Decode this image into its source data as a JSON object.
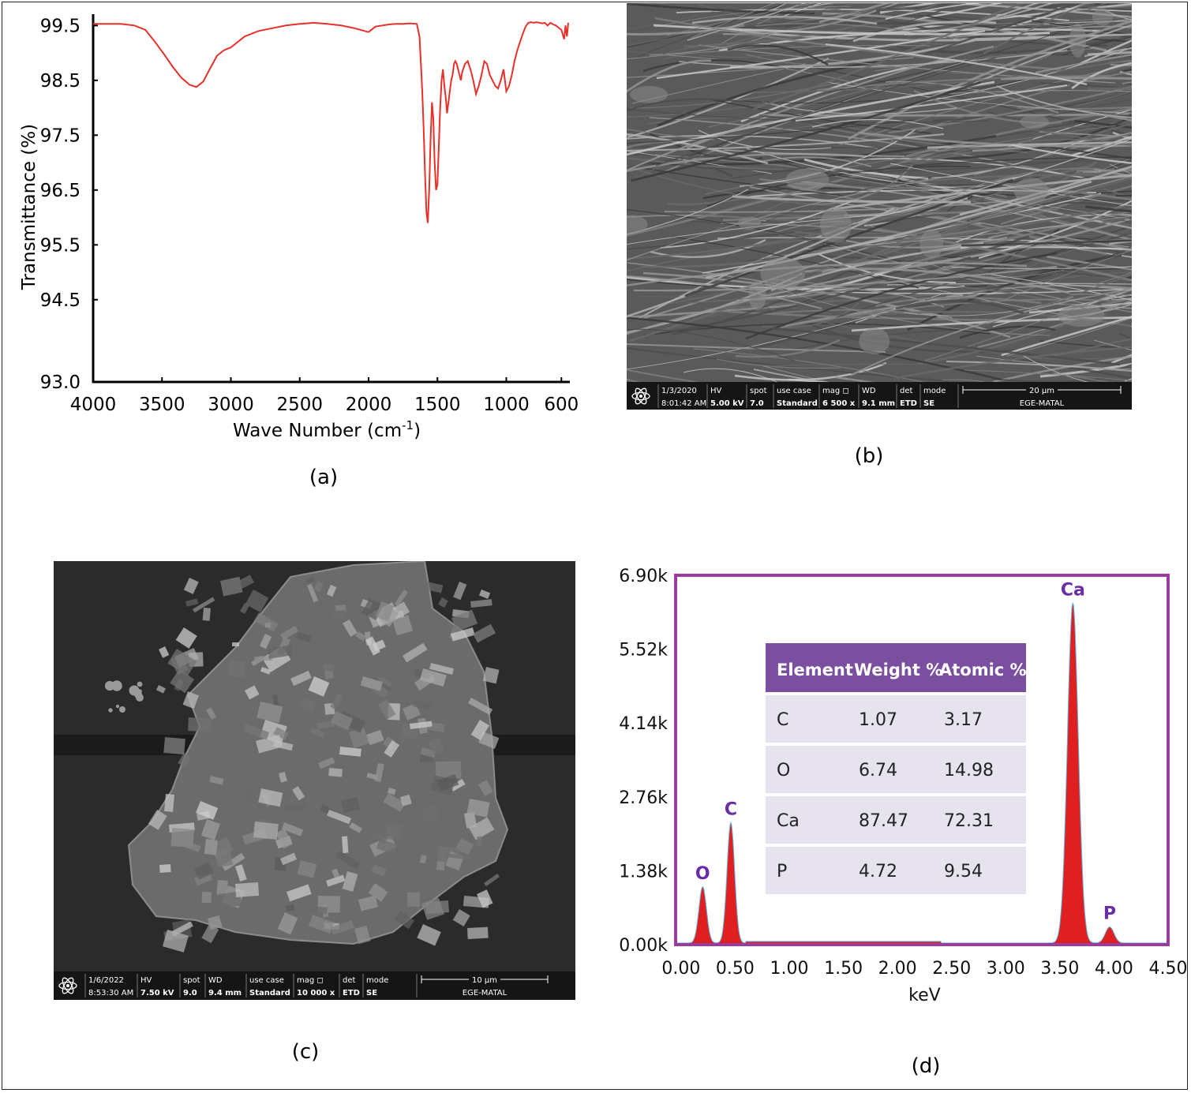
{
  "figure": {
    "panel_labels": [
      "(a)",
      "(b)",
      "(c)",
      "(d)"
    ]
  },
  "chart_data": [
    {
      "type": "line",
      "panel": "a",
      "xlabel": "Wave Number (cm-1)",
      "ylabel": "Transmittance (%)",
      "x_ticks": [
        4000,
        3500,
        3000,
        2500,
        2000,
        1500,
        1000,
        600
      ],
      "y_ticks": [
        99.5,
        98.5,
        97.5,
        96.5,
        95.5,
        94.5,
        93.0
      ],
      "xlim": [
        4000,
        550
      ],
      "ylim": [
        93.0,
        99.62
      ],
      "line_color": "#e8302a",
      "series": [
        {
          "x": [
            4000,
            3800,
            3700,
            3620,
            3550,
            3480,
            3420,
            3360,
            3300,
            3250,
            3200,
            3150,
            3100,
            3050,
            3000,
            2950,
            2900,
            2800,
            2700,
            2600,
            2500,
            2400,
            2300,
            2200,
            2100,
            2000,
            1950,
            1900,
            1850,
            1800,
            1750,
            1700,
            1650,
            1630,
            1620,
            1610,
            1600,
            1590,
            1580,
            1570,
            1560,
            1550,
            1540,
            1530,
            1520,
            1510,
            1500,
            1490,
            1480,
            1470,
            1460,
            1450,
            1440,
            1430,
            1420,
            1410,
            1400,
            1390,
            1380,
            1370,
            1360,
            1350,
            1340,
            1330,
            1320,
            1300,
            1280,
            1260,
            1240,
            1220,
            1200,
            1180,
            1160,
            1140,
            1120,
            1100,
            1080,
            1060,
            1040,
            1020,
            1000,
            980,
            960,
            940,
            920,
            900,
            880,
            860,
            840,
            820,
            800,
            780,
            760,
            740,
            720,
            700,
            680,
            660,
            640,
            620,
            600,
            580,
            570,
            560,
            550
          ],
          "y": [
            99.53,
            99.53,
            99.5,
            99.42,
            99.2,
            98.96,
            98.74,
            98.55,
            98.42,
            98.38,
            98.48,
            98.72,
            98.95,
            99.05,
            99.1,
            99.2,
            99.3,
            99.4,
            99.45,
            99.5,
            99.53,
            99.55,
            99.53,
            99.5,
            99.45,
            99.38,
            99.48,
            99.5,
            99.52,
            99.53,
            99.53,
            99.54,
            99.53,
            99.3,
            98.8,
            98.3,
            97.6,
            96.8,
            96.1,
            95.9,
            96.5,
            97.4,
            98.1,
            97.8,
            97.0,
            96.5,
            96.6,
            97.3,
            98.0,
            98.5,
            98.7,
            98.4,
            98.2,
            97.9,
            98.1,
            98.3,
            98.5,
            98.6,
            98.8,
            98.85,
            98.8,
            98.7,
            98.6,
            98.5,
            98.65,
            98.8,
            98.85,
            98.7,
            98.5,
            98.25,
            98.4,
            98.6,
            98.85,
            98.8,
            98.6,
            98.5,
            98.4,
            98.35,
            98.5,
            98.7,
            98.3,
            98.4,
            98.6,
            98.85,
            99.05,
            99.2,
            99.35,
            99.48,
            99.55,
            99.56,
            99.55,
            99.56,
            99.55,
            99.54,
            99.55,
            99.5,
            99.55,
            99.52,
            99.5,
            99.46,
            99.42,
            99.25,
            99.5,
            99.3,
            99.55
          ]
        }
      ]
    },
    {
      "type": "area",
      "panel": "d",
      "xlabel": "keV",
      "x_ticks": [
        "0.00",
        "0.50",
        "1.00",
        "1.50",
        "2.00",
        "2.50",
        "3.00",
        "3.50",
        "4.00",
        "4.50"
      ],
      "y_ticks": [
        "6.90k",
        "5.52k",
        "4.14k",
        "2.76k",
        "1.38k",
        "0.00k"
      ],
      "xlim": [
        -0.05,
        4.5
      ],
      "ylim": [
        0,
        6.9
      ],
      "peaks": [
        {
          "label": "O",
          "x": 0.2,
          "height": 1.05,
          "width": 0.035
        },
        {
          "label": "C",
          "x": 0.46,
          "height": 2.25,
          "width": 0.035
        },
        {
          "label": "Ca",
          "x": 3.62,
          "height": 6.35,
          "width": 0.05
        },
        {
          "label": "P",
          "x": 3.96,
          "height": 0.3,
          "width": 0.04
        }
      ],
      "fill_color": "#e02020",
      "border_color": "#9b3b9b",
      "label_color": "#6a2da8",
      "table": {
        "header": [
          "Element",
          "Weight %",
          "Atomic %"
        ],
        "rows": [
          [
            "C",
            "1.07",
            "3.17"
          ],
          [
            "O",
            "6.74",
            "14.98"
          ],
          [
            "Ca",
            "87.47",
            "72.31"
          ],
          [
            "P",
            "4.72",
            "9.54"
          ]
        ],
        "header_bg": "#7b4fa0",
        "row_bg": "#e6e3ef"
      }
    }
  ],
  "sem_b": {
    "cols": [
      {
        "top": "1/3/2020",
        "bottom": "8:01:42 AM"
      },
      {
        "top": "HV",
        "bottom": "5.00 kV"
      },
      {
        "top": "spot",
        "bottom": "7.0"
      },
      {
        "top": "use case",
        "bottom": "Standard"
      },
      {
        "top": "mag ◻",
        "bottom": "6 500 x"
      },
      {
        "top": "WD",
        "bottom": "9.1 mm"
      },
      {
        "top": "det",
        "bottom": "ETD"
      },
      {
        "top": "mode",
        "bottom": "SE"
      }
    ],
    "scale": "20 µm",
    "lab": "EGE-MATAL"
  },
  "sem_c": {
    "cols": [
      {
        "top": "1/6/2022",
        "bottom": "8:53:30 AM"
      },
      {
        "top": "HV",
        "bottom": "7.50 kV"
      },
      {
        "top": "spot",
        "bottom": "9.0"
      },
      {
        "top": "WD",
        "bottom": "9.4 mm"
      },
      {
        "top": "use case",
        "bottom": "Standard"
      },
      {
        "top": "mag ◻",
        "bottom": "10 000 x"
      },
      {
        "top": "det",
        "bottom": "ETD"
      },
      {
        "top": "mode",
        "bottom": "SE"
      }
    ],
    "scale": "10 µm",
    "lab": "EGE-MATAL"
  }
}
